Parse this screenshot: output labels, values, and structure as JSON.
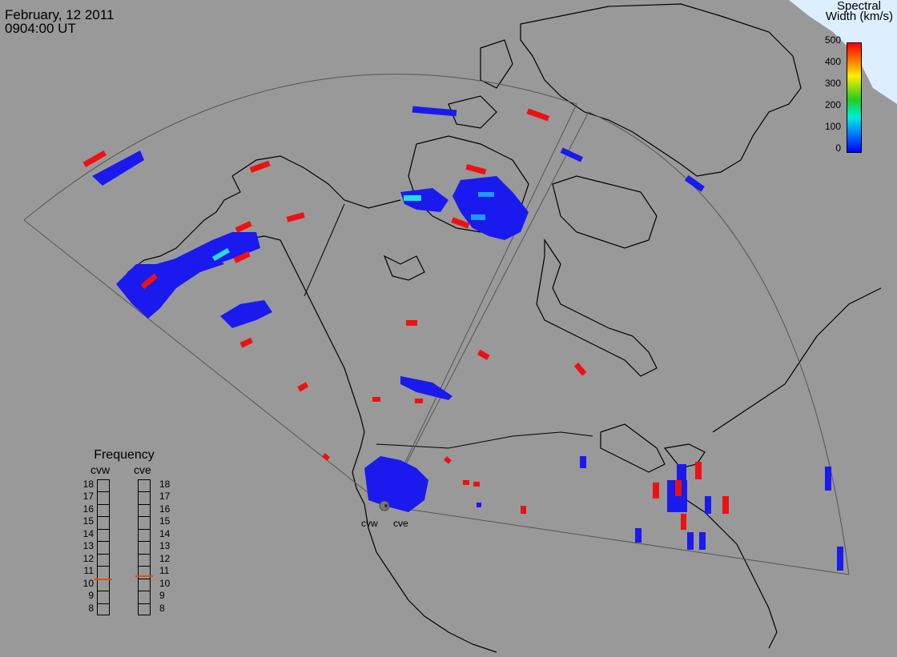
{
  "header": {
    "date": "February, 12 2011",
    "time": "0904:00 UT"
  },
  "colorbar": {
    "title_line1": "Spectral",
    "title_line2": "Width (km/s)",
    "ticks": [
      "500",
      "400",
      "300",
      "200",
      "100",
      "0"
    ],
    "colors": {
      "high": "#ff0000",
      "mid_high": "#ff8800",
      "mid": "#ffee00",
      "mid_low": "#22cc22",
      "low_mid": "#00eedd",
      "low": "#0000ff"
    }
  },
  "frequency": {
    "title": "Frequency",
    "radars": [
      {
        "name": "cvw",
        "value": 10.5
      },
      {
        "name": "cve",
        "value": 10.75
      }
    ],
    "scale": [
      "18",
      "17",
      "16",
      "15",
      "14",
      "13",
      "12",
      "11",
      "10",
      "9",
      "8"
    ]
  },
  "radar_labels": [
    "cvw",
    "cve"
  ],
  "colors": {
    "background": "#999999",
    "land_line": "#000000",
    "fov_line": "#555555",
    "echo_blue": "#1a1aee",
    "echo_red": "#ee1111",
    "echo_cyan": "#22dddd"
  }
}
